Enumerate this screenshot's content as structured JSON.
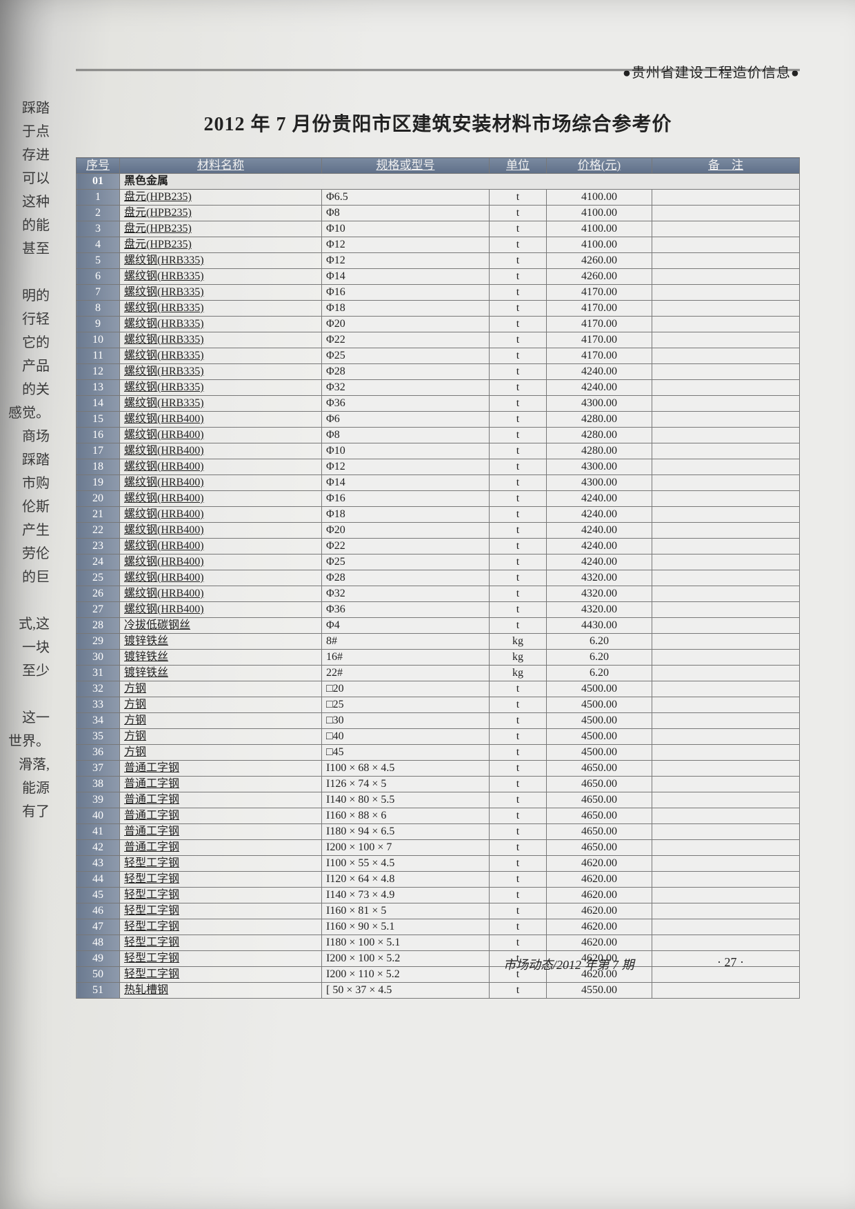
{
  "left_fragments": [
    "踩踏",
    "于点",
    "存进",
    "可以",
    "这种",
    "的能",
    "甚至",
    "",
    "明的",
    "行轻",
    "它的",
    "产品",
    "的关",
    "感觉。",
    "商场",
    "踩踏",
    "市购",
    "伦斯",
    "产生",
    "劳伦",
    "的巨",
    "",
    "式,这",
    "一块",
    "至少",
    "",
    "这一",
    "世界。",
    "滑落,",
    "能源",
    "有了"
  ],
  "header_label": "●贵州省建设工程造价信息●",
  "title": "2012 年 7 月份贵阳市区建筑安装材料市场综合参考价",
  "columns": [
    "序号",
    "材料名称",
    "规格或型号",
    "单位",
    "价格(元)",
    "备　注"
  ],
  "section": {
    "code": "01",
    "name": "黑色金属"
  },
  "rows": [
    {
      "n": "1",
      "name": "盘元(HPB235)",
      "spec": "Φ6.5",
      "unit": "t",
      "price": "4100.00"
    },
    {
      "n": "2",
      "name": "盘元(HPB235)",
      "spec": "Φ8",
      "unit": "t",
      "price": "4100.00"
    },
    {
      "n": "3",
      "name": "盘元(HPB235)",
      "spec": "Φ10",
      "unit": "t",
      "price": "4100.00"
    },
    {
      "n": "4",
      "name": "盘元(HPB235)",
      "spec": "Φ12",
      "unit": "t",
      "price": "4100.00"
    },
    {
      "n": "5",
      "name": "螺纹钢(HRB335)",
      "spec": "Φ12",
      "unit": "t",
      "price": "4260.00"
    },
    {
      "n": "6",
      "name": "螺纹钢(HRB335)",
      "spec": "Φ14",
      "unit": "t",
      "price": "4260.00"
    },
    {
      "n": "7",
      "name": "螺纹钢(HRB335)",
      "spec": "Φ16",
      "unit": "t",
      "price": "4170.00"
    },
    {
      "n": "8",
      "name": "螺纹钢(HRB335)",
      "spec": "Φ18",
      "unit": "t",
      "price": "4170.00"
    },
    {
      "n": "9",
      "name": "螺纹钢(HRB335)",
      "spec": "Φ20",
      "unit": "t",
      "price": "4170.00"
    },
    {
      "n": "10",
      "name": "螺纹钢(HRB335)",
      "spec": "Φ22",
      "unit": "t",
      "price": "4170.00"
    },
    {
      "n": "11",
      "name": "螺纹钢(HRB335)",
      "spec": "Φ25",
      "unit": "t",
      "price": "4170.00"
    },
    {
      "n": "12",
      "name": "螺纹钢(HRB335)",
      "spec": "Φ28",
      "unit": "t",
      "price": "4240.00"
    },
    {
      "n": "13",
      "name": "螺纹钢(HRB335)",
      "spec": "Φ32",
      "unit": "t",
      "price": "4240.00"
    },
    {
      "n": "14",
      "name": "螺纹钢(HRB335)",
      "spec": "Φ36",
      "unit": "t",
      "price": "4300.00"
    },
    {
      "n": "15",
      "name": "螺纹钢(HRB400)",
      "spec": "Φ6",
      "unit": "t",
      "price": "4280.00"
    },
    {
      "n": "16",
      "name": "螺纹钢(HRB400)",
      "spec": "Φ8",
      "unit": "t",
      "price": "4280.00"
    },
    {
      "n": "17",
      "name": "螺纹钢(HRB400)",
      "spec": "Φ10",
      "unit": "t",
      "price": "4280.00"
    },
    {
      "n": "18",
      "name": "螺纹钢(HRB400)",
      "spec": "Φ12",
      "unit": "t",
      "price": "4300.00"
    },
    {
      "n": "19",
      "name": "螺纹钢(HRB400)",
      "spec": "Φ14",
      "unit": "t",
      "price": "4300.00"
    },
    {
      "n": "20",
      "name": "螺纹钢(HRB400)",
      "spec": "Φ16",
      "unit": "t",
      "price": "4240.00"
    },
    {
      "n": "21",
      "name": "螺纹钢(HRB400)",
      "spec": "Φ18",
      "unit": "t",
      "price": "4240.00"
    },
    {
      "n": "22",
      "name": "螺纹钢(HRB400)",
      "spec": "Φ20",
      "unit": "t",
      "price": "4240.00"
    },
    {
      "n": "23",
      "name": "螺纹钢(HRB400)",
      "spec": "Φ22",
      "unit": "t",
      "price": "4240.00"
    },
    {
      "n": "24",
      "name": "螺纹钢(HRB400)",
      "spec": "Φ25",
      "unit": "t",
      "price": "4240.00"
    },
    {
      "n": "25",
      "name": "螺纹钢(HRB400)",
      "spec": "Φ28",
      "unit": "t",
      "price": "4320.00"
    },
    {
      "n": "26",
      "name": "螺纹钢(HRB400)",
      "spec": "Φ32",
      "unit": "t",
      "price": "4320.00"
    },
    {
      "n": "27",
      "name": "螺纹钢(HRB400)",
      "spec": "Φ36",
      "unit": "t",
      "price": "4320.00"
    },
    {
      "n": "28",
      "name": "冷拔低碳钢丝",
      "spec": "Φ4",
      "unit": "t",
      "price": "4430.00"
    },
    {
      "n": "29",
      "name": "镀锌铁丝",
      "spec": "8#",
      "unit": "kg",
      "price": "6.20"
    },
    {
      "n": "30",
      "name": "镀锌铁丝",
      "spec": "16#",
      "unit": "kg",
      "price": "6.20"
    },
    {
      "n": "31",
      "name": "镀锌铁丝",
      "spec": "22#",
      "unit": "kg",
      "price": "6.20"
    },
    {
      "n": "32",
      "name": "方钢",
      "spec": "□20",
      "unit": "t",
      "price": "4500.00"
    },
    {
      "n": "33",
      "name": "方钢",
      "spec": "□25",
      "unit": "t",
      "price": "4500.00"
    },
    {
      "n": "34",
      "name": "方钢",
      "spec": "□30",
      "unit": "t",
      "price": "4500.00"
    },
    {
      "n": "35",
      "name": "方钢",
      "spec": "□40",
      "unit": "t",
      "price": "4500.00"
    },
    {
      "n": "36",
      "name": "方钢",
      "spec": "□45",
      "unit": "t",
      "price": "4500.00"
    },
    {
      "n": "37",
      "name": "普通工字钢",
      "spec": "I100 × 68 × 4.5",
      "unit": "t",
      "price": "4650.00"
    },
    {
      "n": "38",
      "name": "普通工字钢",
      "spec": "I126 × 74 × 5",
      "unit": "t",
      "price": "4650.00"
    },
    {
      "n": "39",
      "name": "普通工字钢",
      "spec": "I140 × 80 × 5.5",
      "unit": "t",
      "price": "4650.00"
    },
    {
      "n": "40",
      "name": "普通工字钢",
      "spec": "I160 × 88 × 6",
      "unit": "t",
      "price": "4650.00"
    },
    {
      "n": "41",
      "name": "普通工字钢",
      "spec": "I180 × 94 × 6.5",
      "unit": "t",
      "price": "4650.00"
    },
    {
      "n": "42",
      "name": "普通工字钢",
      "spec": "I200 × 100 × 7",
      "unit": "t",
      "price": "4650.00"
    },
    {
      "n": "43",
      "name": "轻型工字钢",
      "spec": "I100 × 55 × 4.5",
      "unit": "t",
      "price": "4620.00"
    },
    {
      "n": "44",
      "name": "轻型工字钢",
      "spec": "I120 × 64 × 4.8",
      "unit": "t",
      "price": "4620.00"
    },
    {
      "n": "45",
      "name": "轻型工字钢",
      "spec": "I140 × 73 × 4.9",
      "unit": "t",
      "price": "4620.00"
    },
    {
      "n": "46",
      "name": "轻型工字钢",
      "spec": "I160 × 81 × 5",
      "unit": "t",
      "price": "4620.00"
    },
    {
      "n": "47",
      "name": "轻型工字钢",
      "spec": "I160 × 90 × 5.1",
      "unit": "t",
      "price": "4620.00"
    },
    {
      "n": "48",
      "name": "轻型工字钢",
      "spec": "I180 × 100 × 5.1",
      "unit": "t",
      "price": "4620.00"
    },
    {
      "n": "49",
      "name": "轻型工字钢",
      "spec": "I200 × 100 × 5.2",
      "unit": "t",
      "price": "4620.00"
    },
    {
      "n": "50",
      "name": "轻型工字钢",
      "spec": "I200 × 110 × 5.2",
      "unit": "t",
      "price": "4620.00"
    },
    {
      "n": "51",
      "name": "热轧槽钢",
      "spec": "[ 50 × 37 × 4.5",
      "unit": "t",
      "price": "4550.00"
    }
  ],
  "footer": "市场动态/2012 年第 7 期",
  "page_num": "· 27 ·"
}
